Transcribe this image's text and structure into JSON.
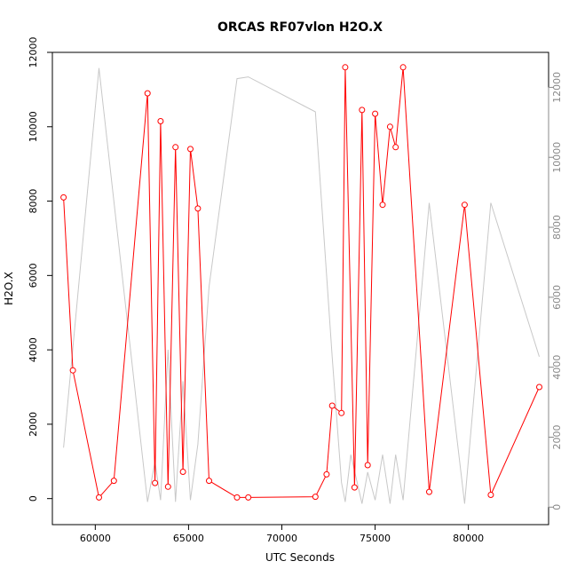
{
  "chart_data": {
    "type": "line",
    "title": "ORCAS RF07vlon H2O.X",
    "xlabel": "UTC Seconds",
    "ylabel": "H2O.X",
    "xlim": [
      57700,
      84300
    ],
    "ylim": [
      -700,
      12000
    ],
    "y2lim": [
      -500,
      13000
    ],
    "x_ticks": [
      "60000",
      "65000",
      "70000",
      "75000",
      "80000"
    ],
    "y_ticks": [
      "0",
      "2000",
      "4000",
      "6000",
      "8000",
      "10000",
      "12000"
    ],
    "y2_ticks": [
      "0",
      "2000",
      "4000",
      "6000",
      "8000",
      "10000",
      "12000"
    ],
    "grid": false,
    "series": [
      {
        "color": "#ff0000",
        "marker": "open-circle",
        "axis": "left",
        "points": [
          [
            58300,
            8100
          ],
          [
            58800,
            3450
          ],
          [
            60200,
            30
          ],
          [
            61000,
            480
          ],
          [
            62800,
            10900
          ],
          [
            63200,
            420
          ],
          [
            63500,
            10150
          ],
          [
            63900,
            320
          ],
          [
            64300,
            9450
          ],
          [
            64700,
            720
          ],
          [
            65100,
            9400
          ],
          [
            65500,
            7800
          ],
          [
            66100,
            480
          ],
          [
            67600,
            30
          ],
          [
            68200,
            30
          ],
          [
            71800,
            50
          ],
          [
            72400,
            650
          ],
          [
            72700,
            2500
          ],
          [
            73200,
            2300
          ],
          [
            73400,
            11600
          ],
          [
            73900,
            300
          ],
          [
            74300,
            10450
          ],
          [
            74600,
            900
          ],
          [
            75000,
            10350
          ],
          [
            75400,
            7900
          ],
          [
            75800,
            10000
          ],
          [
            76100,
            9450
          ],
          [
            76500,
            11600
          ],
          [
            77900,
            180
          ],
          [
            79800,
            7900
          ],
          [
            81200,
            100
          ],
          [
            83800,
            3000
          ]
        ]
      },
      {
        "color": "#c8c8c8",
        "marker": "none",
        "axis": "right",
        "points": [
          [
            58300,
            1700
          ],
          [
            60200,
            12550
          ],
          [
            62800,
            150
          ],
          [
            63200,
            1300
          ],
          [
            63500,
            200
          ],
          [
            63900,
            4500
          ],
          [
            64300,
            150
          ],
          [
            64700,
            3600
          ],
          [
            65100,
            200
          ],
          [
            65500,
            1800
          ],
          [
            66100,
            6300
          ],
          [
            67600,
            12250
          ],
          [
            68200,
            12300
          ],
          [
            71800,
            11300
          ],
          [
            72700,
            4300
          ],
          [
            73200,
            700
          ],
          [
            73400,
            150
          ],
          [
            73700,
            1500
          ],
          [
            74300,
            100
          ],
          [
            74600,
            1000
          ],
          [
            75000,
            200
          ],
          [
            75400,
            1500
          ],
          [
            75800,
            100
          ],
          [
            76100,
            1500
          ],
          [
            76500,
            200
          ],
          [
            77900,
            8700
          ],
          [
            79800,
            100
          ],
          [
            81200,
            8700
          ],
          [
            83800,
            4300
          ]
        ]
      }
    ]
  }
}
